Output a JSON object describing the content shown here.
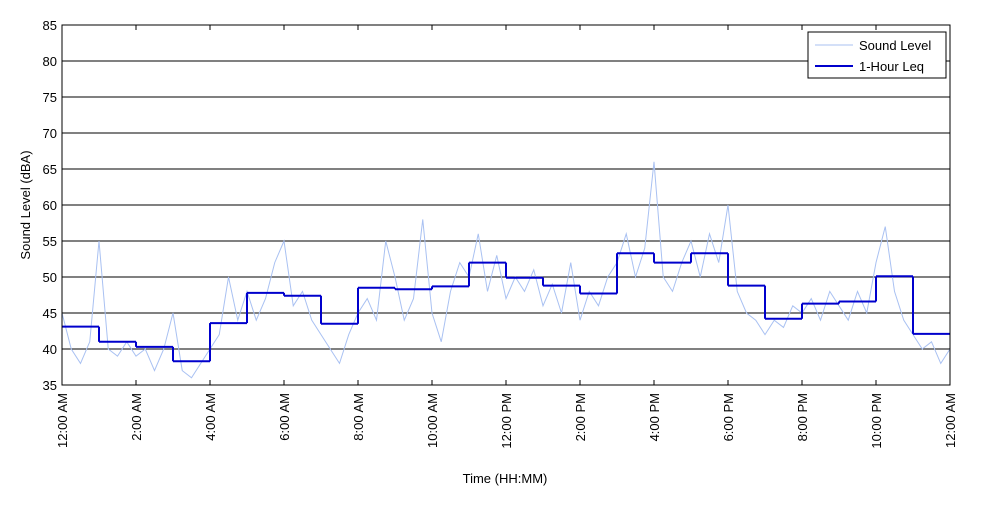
{
  "chart_data": {
    "type": "line",
    "x_label": "Time (HH:MM)",
    "y_label": "Sound Level (dBA)",
    "xlim": [
      0,
      24
    ],
    "xticks": [
      {
        "value": 0,
        "label": "12:00 AM"
      },
      {
        "value": 2,
        "label": "2:00 AM"
      },
      {
        "value": 4,
        "label": "4:00 AM"
      },
      {
        "value": 6,
        "label": "6:00 AM"
      },
      {
        "value": 8,
        "label": "8:00 AM"
      },
      {
        "value": 10,
        "label": "10:00 AM"
      },
      {
        "value": 12,
        "label": "12:00 PM"
      },
      {
        "value": 14,
        "label": "2:00 PM"
      },
      {
        "value": 16,
        "label": "4:00 PM"
      },
      {
        "value": 18,
        "label": "6:00 PM"
      },
      {
        "value": 20,
        "label": "8:00 PM"
      },
      {
        "value": 22,
        "label": "10:00 PM"
      },
      {
        "value": 24,
        "label": "12:00 AM"
      }
    ],
    "ylim": [
      35,
      85
    ],
    "yticks": [
      35,
      40,
      45,
      50,
      55,
      60,
      65,
      70,
      75,
      80,
      85
    ],
    "grid": true,
    "legend": "upper right",
    "series": [
      {
        "name": "Sound Level",
        "color": "#a9c1f2",
        "step": false,
        "x": [
          0,
          0.25,
          0.5,
          0.75,
          1,
          1.25,
          1.5,
          1.75,
          2,
          2.25,
          2.5,
          2.75,
          3,
          3.25,
          3.5,
          3.75,
          4,
          4.25,
          4.5,
          4.75,
          5,
          5.25,
          5.5,
          5.75,
          6,
          6.25,
          6.5,
          6.75,
          7,
          7.25,
          7.5,
          7.75,
          8,
          8.25,
          8.5,
          8.75,
          9,
          9.25,
          9.5,
          9.75,
          10,
          10.25,
          10.5,
          10.75,
          11,
          11.25,
          11.5,
          11.75,
          12,
          12.25,
          12.5,
          12.75,
          13,
          13.25,
          13.5,
          13.75,
          14,
          14.25,
          14.5,
          14.75,
          15,
          15.25,
          15.5,
          15.75,
          16,
          16.25,
          16.5,
          16.75,
          17,
          17.25,
          17.5,
          17.75,
          18,
          18.25,
          18.5,
          18.75,
          19,
          19.25,
          19.5,
          19.75,
          20,
          20.25,
          20.5,
          20.75,
          21,
          21.25,
          21.5,
          21.75,
          22,
          22.25,
          22.5,
          22.75,
          23,
          23.25,
          23.5,
          23.75,
          24
        ],
        "values": [
          45,
          40,
          38,
          41,
          55,
          40,
          39,
          41,
          39,
          40,
          37,
          40,
          45,
          37,
          36,
          38,
          40,
          42,
          50,
          44,
          48,
          44,
          47,
          52,
          55,
          46,
          48,
          44,
          42,
          40,
          38,
          42,
          45,
          47,
          44,
          55,
          50,
          44,
          47,
          58,
          45,
          41,
          48,
          52,
          50,
          56,
          48,
          53,
          47,
          50,
          48,
          51,
          46,
          49,
          45,
          52,
          44,
          48,
          46,
          50,
          52,
          56,
          50,
          54,
          66,
          50,
          48,
          52,
          55,
          50,
          56,
          52,
          60,
          48,
          45,
          44,
          42,
          44,
          43,
          46,
          45,
          47,
          44,
          48,
          46,
          44,
          48,
          45,
          52,
          57,
          48,
          44,
          42,
          40,
          41,
          38,
          40
        ]
      },
      {
        "name": "1-Hour Leq",
        "color": "#0000cc",
        "step": true,
        "x": [
          0,
          1,
          2,
          3,
          4,
          5,
          6,
          7,
          8,
          9,
          10,
          11,
          12,
          13,
          14,
          15,
          16,
          17,
          18,
          19,
          20,
          21,
          22,
          23
        ],
        "values": [
          43.1,
          41.0,
          40.3,
          38.3,
          43.6,
          47.8,
          47.4,
          43.5,
          48.5,
          48.3,
          48.7,
          52.0,
          49.9,
          48.8,
          47.7,
          53.3,
          52.0,
          53.3,
          48.8,
          44.2,
          46.3,
          46.6,
          50.1,
          42.1
        ]
      }
    ]
  }
}
